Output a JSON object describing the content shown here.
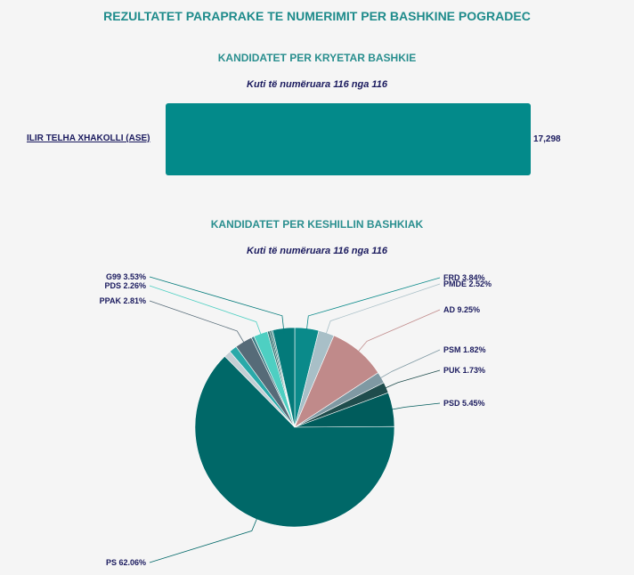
{
  "page_title": "REZULTATET PARAPRAKE TE NUMERIMIT PER BASHKINE POGRADEC",
  "chart_data": [
    {
      "type": "bar",
      "title": "KANDIDATET PER KRYETAR BASHKIE",
      "subtitle": "Kuti të numëruara 116 nga 116",
      "categories": [
        "ILIR TELHA XHAKOLLI (ASE)"
      ],
      "values": [
        17298
      ],
      "value_labels": [
        "17,298"
      ],
      "color": "#038a8a"
    },
    {
      "type": "pie",
      "title": "KANDIDATET PER KESHILLIN BASHKIAK",
      "subtitle": "Kuti të numëruara 116 nga 116",
      "slices": [
        {
          "label": "FRD 3.84%",
          "value": 3.84,
          "color": "#0a8a8a"
        },
        {
          "label": "PMDE 2.52%",
          "value": 2.52,
          "color": "#a8bfc7"
        },
        {
          "label": "AD 9.25%",
          "value": 9.25,
          "color": "#c08a8a"
        },
        {
          "label": "PSM 1.82%",
          "value": 1.82,
          "color": "#7f99a3"
        },
        {
          "label": "PUK 1.73%",
          "value": 1.73,
          "color": "#1f4d4d"
        },
        {
          "label": "PSD 5.45%",
          "value": 5.45,
          "color": "#005c5c"
        },
        {
          "label": "PS 62.06%",
          "value": 62.06,
          "color": "#006868"
        },
        {
          "label": "",
          "value": 1.1,
          "color": "#c4ced4"
        },
        {
          "label": "",
          "value": 1.25,
          "color": "#2aa9a9"
        },
        {
          "label": "PPAK 2.81%",
          "value": 2.81,
          "color": "#566b78"
        },
        {
          "label": "",
          "value": 0.45,
          "color": "#3e7d86"
        },
        {
          "label": "PDS 2.26%",
          "value": 2.26,
          "color": "#4ecfc2"
        },
        {
          "label": "",
          "value": 0.35,
          "color": "#2d6e6e"
        },
        {
          "label": "",
          "value": 0.25,
          "color": "#125454"
        },
        {
          "label": "",
          "value": 0.25,
          "color": "#3c8c8c"
        },
        {
          "label": "G99 3.53%",
          "value": 3.53,
          "color": "#037a7a"
        }
      ]
    }
  ]
}
